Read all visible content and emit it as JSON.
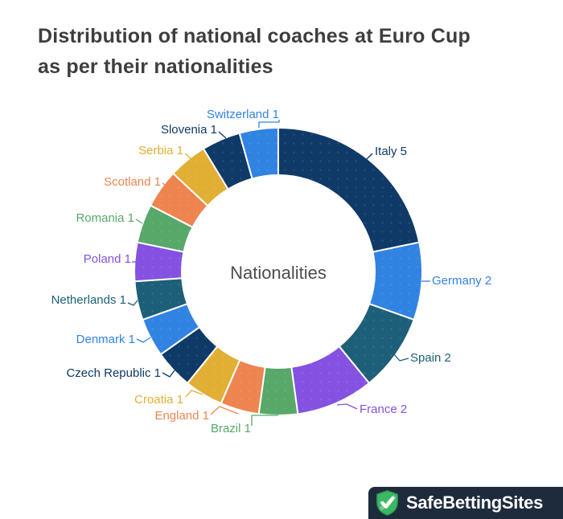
{
  "title": {
    "line1": "Distribution of national coaches at Euro Cup",
    "line2": "as per their nationalities"
  },
  "chart_data": {
    "type": "pie",
    "subtype": "donut",
    "hole_ratio": 0.67,
    "direction": "clockwise",
    "rotation_deg": 0,
    "center_label": "Nationalities",
    "total_units": 23,
    "slices": [
      {
        "label": "Italy",
        "value": 5,
        "color": "#0f3a67"
      },
      {
        "label": "Germany",
        "value": 2,
        "color": "#3183e2"
      },
      {
        "label": "Spain",
        "value": 2,
        "color": "#1d5f78"
      },
      {
        "label": "France",
        "value": 2,
        "color": "#8451e1"
      },
      {
        "label": "Brazil",
        "value": 1,
        "color": "#58a86a"
      },
      {
        "label": "England",
        "value": 1,
        "color": "#ee8450"
      },
      {
        "label": "Croatia",
        "value": 1,
        "color": "#e1af33"
      },
      {
        "label": "Czech Republic",
        "value": 1,
        "color": "#0f3a67"
      },
      {
        "label": "Denmark",
        "value": 1,
        "color": "#3183e2"
      },
      {
        "label": "Netherlands",
        "value": 1,
        "color": "#1d5f78"
      },
      {
        "label": "Poland",
        "value": 1,
        "color": "#8451e1"
      },
      {
        "label": "Romania",
        "value": 1,
        "color": "#58a86a"
      },
      {
        "label": "Scotland",
        "value": 1,
        "color": "#ee8450"
      },
      {
        "label": "Serbia",
        "value": 1,
        "color": "#e1af33"
      },
      {
        "label": "Slovenia",
        "value": 1,
        "color": "#0f3a67"
      },
      {
        "label": "Switzerland",
        "value": 1,
        "color": "#3183e2"
      }
    ]
  },
  "branding": {
    "name": "SafeBettingSites",
    "bar_color": "#1e2b3d",
    "shield_color": "#3bb863",
    "check_color": "#ffffff"
  }
}
